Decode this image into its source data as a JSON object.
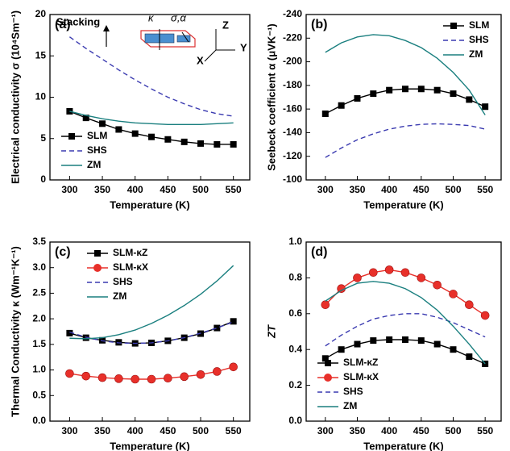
{
  "chart_data": [
    {
      "type": "line",
      "panel_label": "(a)",
      "x_label": "Temperature (K)",
      "y_label": "Electrical conductivity σ (10⁴Sm⁻¹)",
      "x": [
        300,
        325,
        350,
        375,
        400,
        425,
        450,
        475,
        500,
        525,
        550
      ],
      "xlim": [
        270,
        575
      ],
      "xticks": [
        300,
        350,
        400,
        450,
        500,
        550
      ],
      "ylim": [
        0,
        20
      ],
      "yticks": [
        0,
        5,
        10,
        15,
        20
      ],
      "legend": "lower left",
      "annotations": [
        "Stacking",
        "κ",
        "σ,α",
        "Z",
        "Y",
        "X"
      ],
      "series": [
        {
          "name": "SLM",
          "color": "#000000",
          "marker": "square",
          "linestyle": "solid",
          "values": [
            8.3,
            7.5,
            6.8,
            6.1,
            5.6,
            5.2,
            4.9,
            4.6,
            4.4,
            4.3,
            4.3
          ]
        },
        {
          "name": "SHS",
          "color": "#3a3ab0",
          "marker": "none",
          "linestyle": "dashed",
          "values": [
            17.3,
            15.9,
            14.6,
            13.3,
            12.1,
            11.0,
            10.0,
            9.2,
            8.5,
            8.0,
            7.7
          ]
        },
        {
          "name": "ZM",
          "color": "#1a7f7f",
          "marker": "none",
          "linestyle": "solid",
          "values": [
            8.3,
            7.8,
            7.4,
            7.1,
            6.9,
            6.8,
            6.7,
            6.7,
            6.7,
            6.8,
            6.9
          ]
        }
      ]
    },
    {
      "type": "line",
      "panel_label": "(b)",
      "x_label": "Temperature (K)",
      "y_label": "Seebeck coefficient α (μVK⁻¹)",
      "x": [
        300,
        325,
        350,
        375,
        400,
        425,
        450,
        475,
        500,
        525,
        550
      ],
      "xlim": [
        270,
        575
      ],
      "xticks": [
        300,
        350,
        400,
        450,
        500,
        550
      ],
      "ylim": [
        -100,
        -240
      ],
      "yticks": [
        -240,
        -220,
        -200,
        -180,
        -160,
        -140,
        -120,
        -100
      ],
      "legend": "upper right",
      "series": [
        {
          "name": "SLM",
          "color": "#000000",
          "marker": "square",
          "linestyle": "solid",
          "values": [
            -156,
            -163,
            -169,
            -173,
            -176,
            -177,
            -177,
            -176,
            -173,
            -168,
            -162
          ]
        },
        {
          "name": "SHS",
          "color": "#3a3ab0",
          "marker": "none",
          "linestyle": "dashed",
          "values": [
            -119,
            -127,
            -134,
            -139,
            -143,
            -145.5,
            -147,
            -147.5,
            -147,
            -146,
            -143
          ]
        },
        {
          "name": "ZM",
          "color": "#1a7f7f",
          "marker": "none",
          "linestyle": "solid",
          "values": [
            -208,
            -216,
            -221,
            -223,
            -222,
            -218,
            -212,
            -203,
            -191,
            -176,
            -155
          ]
        }
      ]
    },
    {
      "type": "line",
      "panel_label": "(c)",
      "x_label": "Temperature (K)",
      "y_label": "Thermal Conductivity κ (Wm⁻¹K⁻¹)",
      "x": [
        300,
        325,
        350,
        375,
        400,
        425,
        450,
        475,
        500,
        525,
        550
      ],
      "xlim": [
        270,
        575
      ],
      "xticks": [
        300,
        350,
        400,
        450,
        500,
        550
      ],
      "ylim": [
        0,
        3.5
      ],
      "yticks": [
        {
          "value": 0,
          "label": "0.0"
        },
        0.5,
        {
          "value": 1,
          "label": "1.0"
        },
        1.5,
        {
          "value": 2,
          "label": "2.0"
        },
        2.5,
        {
          "value": 3,
          "label": "3.0"
        },
        3.5
      ],
      "legend": "upper left",
      "series": [
        {
          "name": "SLM-κZ",
          "color": "#000000",
          "marker": "square",
          "linestyle": "solid",
          "values": [
            1.72,
            1.63,
            1.58,
            1.54,
            1.52,
            1.53,
            1.57,
            1.63,
            1.71,
            1.82,
            1.95
          ]
        },
        {
          "name": "SLM-κX",
          "color": "#e8302a",
          "marker": "circle",
          "linestyle": "solid",
          "values": [
            0.93,
            0.88,
            0.85,
            0.83,
            0.82,
            0.82,
            0.84,
            0.87,
            0.91,
            0.97,
            1.06
          ]
        },
        {
          "name": "SHS",
          "color": "#3a3ab0",
          "marker": "none",
          "linestyle": "dashed",
          "values": [
            1.74,
            1.64,
            1.57,
            1.53,
            1.52,
            1.53,
            1.57,
            1.63,
            1.72,
            1.82,
            1.94
          ]
        },
        {
          "name": "ZM",
          "color": "#1a7f7f",
          "marker": "none",
          "linestyle": "solid",
          "values": [
            1.62,
            1.61,
            1.63,
            1.69,
            1.78,
            1.91,
            2.07,
            2.26,
            2.48,
            2.74,
            3.04
          ]
        }
      ]
    },
    {
      "type": "line",
      "panel_label": "(d)",
      "x_label": "Temperature (K)",
      "y_label": "ZT",
      "x": [
        300,
        325,
        350,
        375,
        400,
        425,
        450,
        475,
        500,
        525,
        550
      ],
      "xlim": [
        270,
        575
      ],
      "xticks": [
        300,
        350,
        400,
        450,
        500,
        550
      ],
      "ylim": [
        0,
        1
      ],
      "yticks": [
        {
          "value": 0,
          "label": "0.0"
        },
        0.2,
        0.4,
        0.6,
        0.8,
        {
          "value": 1,
          "label": "1.0"
        }
      ],
      "legend": "lower left",
      "series": [
        {
          "name": "SLM-κZ",
          "color": "#000000",
          "marker": "square",
          "linestyle": "solid",
          "values": [
            0.35,
            0.4,
            0.43,
            0.45,
            0.455,
            0.455,
            0.45,
            0.43,
            0.4,
            0.36,
            0.32
          ]
        },
        {
          "name": "SLM-κX",
          "color": "#e8302a",
          "marker": "circle",
          "linestyle": "solid",
          "values": [
            0.65,
            0.74,
            0.8,
            0.83,
            0.845,
            0.83,
            0.8,
            0.76,
            0.71,
            0.65,
            0.59
          ]
        },
        {
          "name": "SHS",
          "color": "#3a3ab0",
          "marker": "none",
          "linestyle": "dashed",
          "values": [
            0.42,
            0.48,
            0.53,
            0.57,
            0.59,
            0.6,
            0.6,
            0.58,
            0.55,
            0.51,
            0.47
          ]
        },
        {
          "name": "ZM",
          "color": "#1a7f7f",
          "marker": "none",
          "linestyle": "solid",
          "values": [
            0.67,
            0.73,
            0.77,
            0.78,
            0.77,
            0.74,
            0.69,
            0.62,
            0.53,
            0.43,
            0.32
          ]
        }
      ]
    }
  ]
}
